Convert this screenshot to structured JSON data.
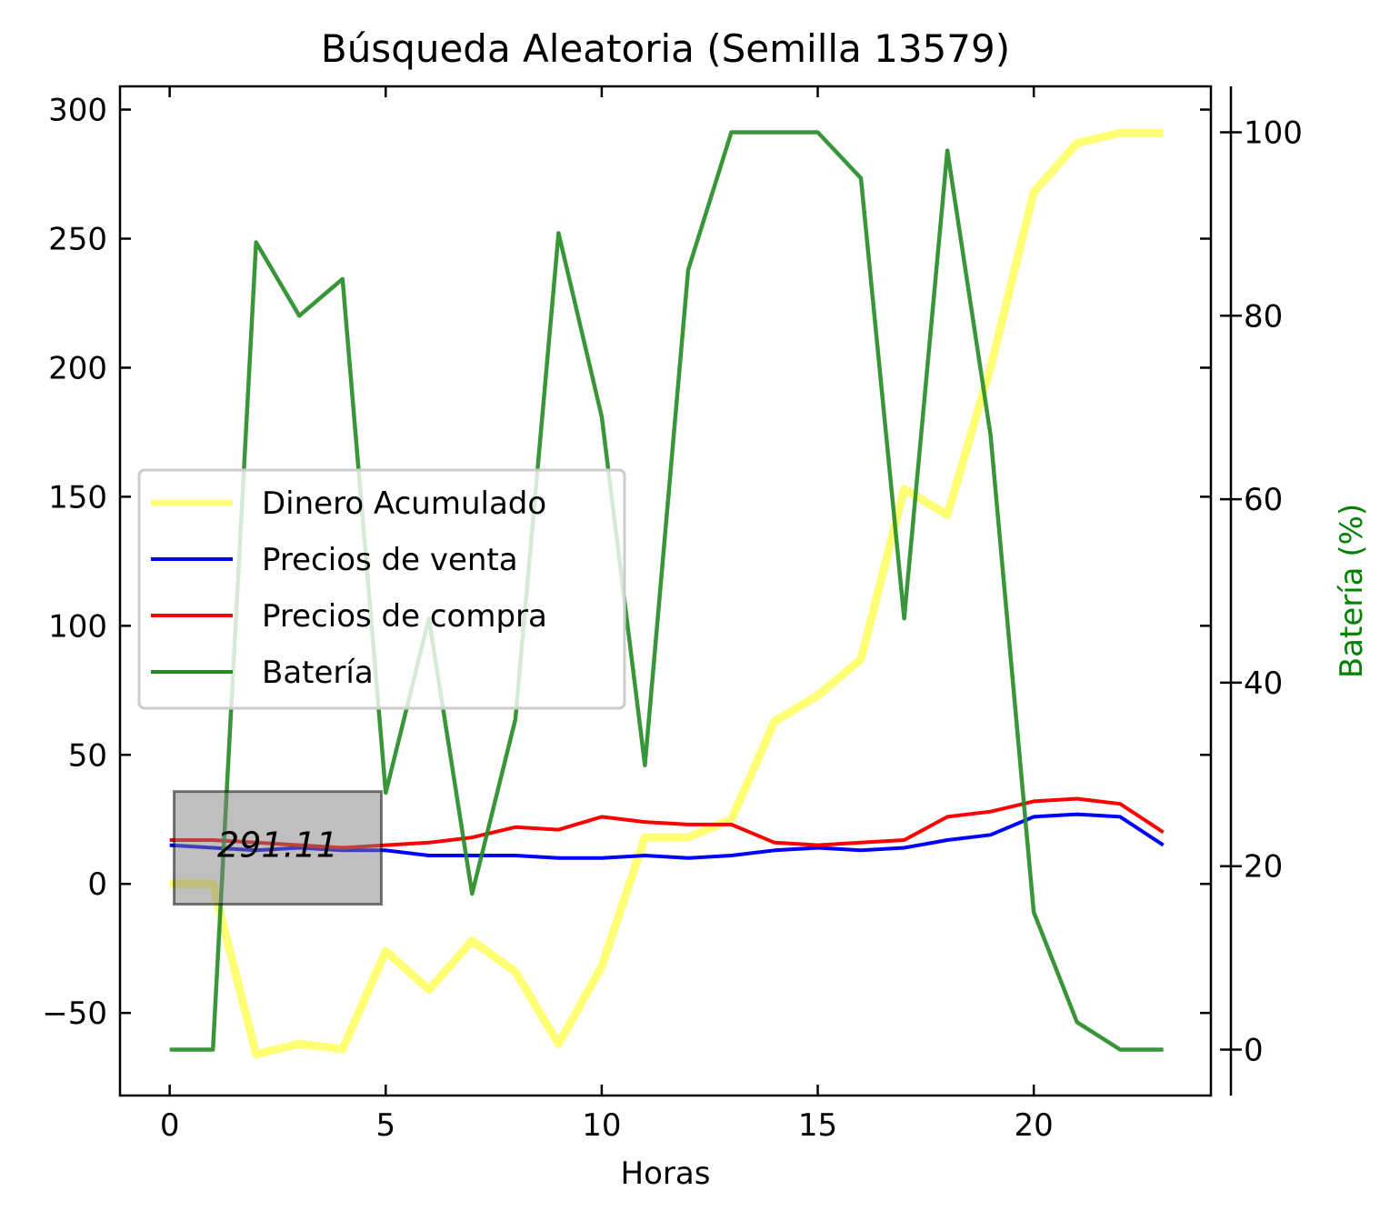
{
  "chart_data": {
    "type": "line",
    "title": "Búsqueda Aleatoria (Semilla 13579)",
    "xlabel": "Horas",
    "ylabel": "",
    "y2label": "Batería (%)",
    "xlim": [
      -1.15,
      24.1
    ],
    "ylim": [
      -82,
      309
    ],
    "y2lim": [
      -5,
      105
    ],
    "x_ticks": [
      0,
      5,
      10,
      15,
      20
    ],
    "y_ticks": [
      -50,
      0,
      50,
      100,
      150,
      200,
      250,
      300
    ],
    "y2_ticks": [
      0,
      20,
      40,
      60,
      80,
      100
    ],
    "legend_position": "center-left",
    "x": [
      0,
      1,
      2,
      3,
      4,
      5,
      6,
      7,
      8,
      9,
      10,
      11,
      12,
      13,
      14,
      15,
      16,
      17,
      18,
      19,
      20,
      21,
      22,
      23
    ],
    "series": [
      {
        "name": "Dinero Acumulado",
        "axis": "left",
        "color": "#ffff66",
        "values": [
          0,
          0,
          -66,
          -62,
          -64,
          -26,
          -41,
          -22,
          -34,
          -62,
          -32,
          18,
          18,
          25,
          63,
          73,
          87,
          153,
          143,
          200,
          268,
          287,
          291,
          291
        ]
      },
      {
        "name": "Precios de venta",
        "axis": "left",
        "color": "#0000ff",
        "values": [
          15,
          14,
          13,
          14,
          13,
          13,
          11,
          11,
          11,
          10,
          10,
          11,
          10,
          11,
          13,
          14,
          13,
          14,
          17,
          19,
          26,
          27,
          26,
          15
        ]
      },
      {
        "name": "Precios de compra",
        "axis": "left",
        "color": "#ff0000",
        "values": [
          17,
          17,
          16,
          15,
          14,
          15,
          16,
          18,
          22,
          21,
          26,
          24,
          23,
          23,
          16,
          15,
          16,
          17,
          26,
          28,
          32,
          33,
          31,
          20
        ]
      },
      {
        "name": "Batería",
        "axis": "right",
        "color": "#228b22",
        "values": [
          0,
          0,
          88,
          80,
          84,
          28,
          47,
          17,
          36,
          89,
          69,
          31,
          85,
          100,
          100,
          100,
          95,
          47,
          98,
          67,
          15,
          3,
          0,
          0
        ]
      }
    ],
    "annotation": {
      "text": "291.11",
      "x": 2.5,
      "y": 15
    }
  }
}
